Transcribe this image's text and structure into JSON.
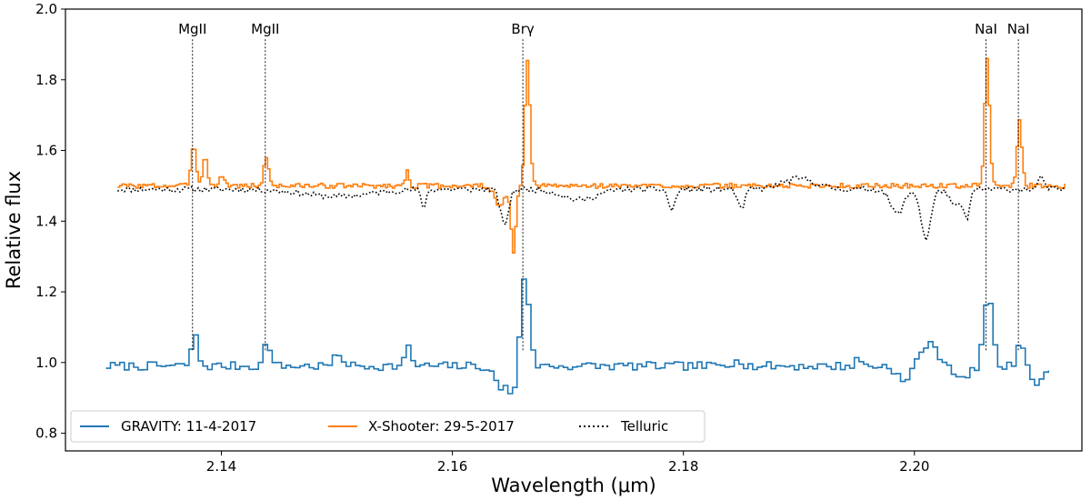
{
  "chart_data": {
    "type": "line",
    "title": "",
    "xlabel": "Wavelength (μm)",
    "ylabel": "Relative flux",
    "xlim": [
      2.1265,
      2.2145
    ],
    "ylim": [
      0.75,
      2.0
    ],
    "xticks": [
      2.14,
      2.16,
      2.18,
      2.2
    ],
    "xtick_labels": [
      "2.14",
      "2.16",
      "2.18",
      "2.20"
    ],
    "yticks": [
      0.8,
      1.0,
      1.2,
      1.4,
      1.6,
      1.8,
      2.0
    ],
    "ytick_labels": [
      "0.8",
      "1.0",
      "1.2",
      "1.4",
      "1.6",
      "1.8",
      "2.0"
    ],
    "legend_location": "lower-left",
    "lines": [
      {
        "label": "MgII",
        "x": 2.1375,
        "y_top": 1.93
      },
      {
        "label": "MgII",
        "x": 2.1438,
        "y_top": 1.93
      },
      {
        "label": "Brγ",
        "x": 2.1661,
        "y_top": 1.93
      },
      {
        "label": "NaI",
        "x": 2.2062,
        "y_top": 1.93
      },
      {
        "label": "NaI",
        "x": 2.209,
        "y_top": 1.93
      }
    ],
    "series": [
      {
        "name": "GRAVITY: 11-4-2017",
        "color": "#1f77b4",
        "style": "steps",
        "baseline": 0.99,
        "x_start": 2.13,
        "x_end": 2.2115,
        "step": 0.0004,
        "noise": 0.012,
        "seed": 7,
        "features": [
          {
            "x": 2.1375,
            "amp": 0.085,
            "w": 0.0004
          },
          {
            "x": 2.1438,
            "amp": 0.07,
            "w": 0.0004
          },
          {
            "x": 2.15,
            "amp": 0.03,
            "w": 0.0006
          },
          {
            "x": 2.156,
            "amp": 0.05,
            "w": 0.0004
          },
          {
            "x": 2.164,
            "amp": -0.06,
            "w": 0.0008
          },
          {
            "x": 2.165,
            "amp": -0.08,
            "w": 0.0004
          },
          {
            "x": 2.1661,
            "amp": 0.26,
            "w": 0.0005
          },
          {
            "x": 2.1845,
            "amp": 0.03,
            "w": 0.0004
          },
          {
            "x": 2.195,
            "amp": 0.02,
            "w": 0.0004
          },
          {
            "x": 2.199,
            "amp": -0.05,
            "w": 0.0008
          },
          {
            "x": 2.201,
            "amp": 0.06,
            "w": 0.0012
          },
          {
            "x": 2.204,
            "amp": -0.04,
            "w": 0.0008
          },
          {
            "x": 2.2062,
            "amp": 0.21,
            "w": 0.0005
          },
          {
            "x": 2.209,
            "amp": 0.08,
            "w": 0.0004
          },
          {
            "x": 2.2105,
            "amp": -0.06,
            "w": 0.0006
          }
        ]
      },
      {
        "name": "X-Shooter: 29-5-2017",
        "color": "#ff7f0e",
        "style": "steps",
        "baseline": 1.5,
        "x_start": 2.131,
        "x_end": 2.213,
        "step": 0.0002,
        "noise": 0.007,
        "seed": 3,
        "features": [
          {
            "x": 2.1375,
            "amp": 0.12,
            "w": 0.0003
          },
          {
            "x": 2.1385,
            "amp": 0.08,
            "w": 0.0003
          },
          {
            "x": 2.14,
            "amp": 0.03,
            "w": 0.0003
          },
          {
            "x": 2.1438,
            "amp": 0.08,
            "w": 0.0003
          },
          {
            "x": 2.156,
            "amp": 0.05,
            "w": 0.0002
          },
          {
            "x": 2.164,
            "amp": -0.06,
            "w": 0.0006
          },
          {
            "x": 2.1652,
            "amp": -0.19,
            "w": 0.0003
          },
          {
            "x": 2.1664,
            "amp": 0.35,
            "w": 0.0003
          },
          {
            "x": 2.2062,
            "amp": 0.36,
            "w": 0.0003
          },
          {
            "x": 2.209,
            "amp": 0.18,
            "w": 0.0003
          }
        ]
      },
      {
        "name": "Telluric",
        "color": "#000000",
        "style": "dotted",
        "baseline": 1.49,
        "x_start": 2.131,
        "x_end": 2.213,
        "step": 0.0002,
        "noise": 0.008,
        "seed": 11,
        "features": [
          {
            "x": 2.15,
            "amp": -0.02,
            "w": 0.004
          },
          {
            "x": 2.1575,
            "amp": -0.05,
            "w": 0.0003
          },
          {
            "x": 2.1645,
            "amp": -0.1,
            "w": 0.0005
          },
          {
            "x": 2.171,
            "amp": -0.03,
            "w": 0.002
          },
          {
            "x": 2.179,
            "amp": -0.06,
            "w": 0.0004
          },
          {
            "x": 2.185,
            "amp": -0.06,
            "w": 0.0004
          },
          {
            "x": 2.19,
            "amp": 0.03,
            "w": 0.002
          },
          {
            "x": 2.1985,
            "amp": -0.07,
            "w": 0.0008
          },
          {
            "x": 2.201,
            "amp": -0.14,
            "w": 0.0006
          },
          {
            "x": 2.2035,
            "amp": -0.05,
            "w": 0.0006
          },
          {
            "x": 2.2045,
            "amp": -0.08,
            "w": 0.0004
          },
          {
            "x": 2.211,
            "amp": 0.04,
            "w": 0.0003
          }
        ]
      }
    ],
    "legend": [
      "GRAVITY: 11-4-2017",
      "X-Shooter: 29-5-2017",
      "Telluric"
    ]
  }
}
